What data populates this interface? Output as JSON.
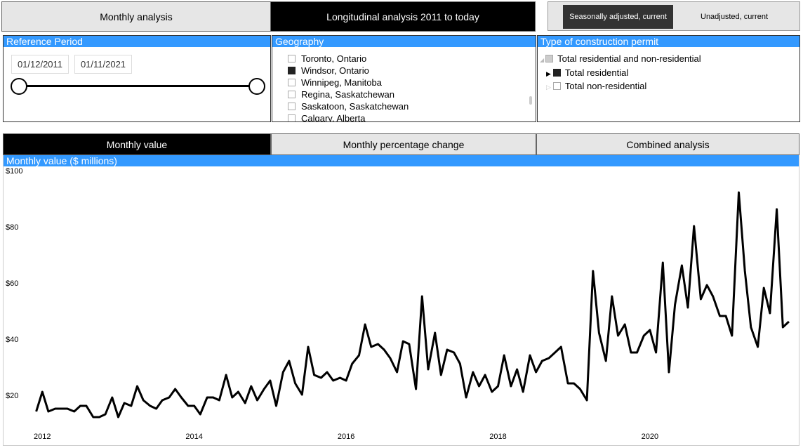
{
  "tabs": [
    "Monthly analysis",
    "Longitudinal analysis 2011 to today"
  ],
  "adjustment": [
    "Seasonally adjusted, current",
    "Unadjusted, current"
  ],
  "reference_period": {
    "title": "Reference Period",
    "start": "01/12/2011",
    "end": "01/11/2021"
  },
  "geography": {
    "title": "Geography",
    "items": [
      "Toronto, Ontario",
      "Windsor, Ontario",
      "Winnipeg, Manitoba",
      "Regina, Saskatchewan",
      "Saskatoon, Saskatchewan",
      "Calgary, Alberta"
    ]
  },
  "permit_type": {
    "title": "Type of construction permit",
    "items": [
      "Total residential and non-residential",
      "Total residential",
      "Total non-residential"
    ]
  },
  "view_tabs": [
    "Monthly value",
    "Monthly percentage change",
    "Combined analysis"
  ],
  "chart_data": {
    "type": "line",
    "title": "Monthly value ($ millions)",
    "color": "#000000",
    "x": [
      2011.92,
      2012.0,
      2012.08,
      2012.17,
      2012.25,
      2012.33,
      2012.42,
      2012.5,
      2012.58,
      2012.67,
      2012.75,
      2012.83,
      2012.92,
      2013.0,
      2013.08,
      2013.17,
      2013.25,
      2013.33,
      2013.42,
      2013.5,
      2013.58,
      2013.67,
      2013.75,
      2013.83,
      2013.92,
      2014.0,
      2014.08,
      2014.17,
      2014.25,
      2014.33,
      2014.42,
      2014.5,
      2014.58,
      2014.67,
      2014.75,
      2014.83,
      2014.92,
      2015.0,
      2015.08,
      2015.17,
      2015.25,
      2015.33,
      2015.42,
      2015.5,
      2015.58,
      2015.67,
      2015.75,
      2015.83,
      2015.92,
      2016.0,
      2016.08,
      2016.17,
      2016.25,
      2016.33,
      2016.42,
      2016.5,
      2016.58,
      2016.67,
      2016.75,
      2016.83,
      2016.92,
      2017.0,
      2017.08,
      2017.17,
      2017.25,
      2017.33,
      2017.42,
      2017.5,
      2017.58,
      2017.67,
      2017.75,
      2017.83,
      2017.92,
      2018.0,
      2018.08,
      2018.17,
      2018.25,
      2018.33,
      2018.42,
      2018.5,
      2018.58,
      2018.67,
      2018.75,
      2018.83,
      2018.92,
      2019.0,
      2019.08,
      2019.17,
      2019.25,
      2019.33,
      2019.42,
      2019.5,
      2019.58,
      2019.67,
      2019.75,
      2019.83,
      2019.92,
      2020.0,
      2020.08,
      2020.17,
      2020.25,
      2020.33,
      2020.42,
      2020.5,
      2020.58,
      2020.67,
      2020.75,
      2020.83,
      2020.92,
      2021.0,
      2021.08,
      2021.17,
      2021.25,
      2021.33,
      2021.42,
      2021.5,
      2021.58,
      2021.67,
      2021.75,
      2021.83
    ],
    "values": [
      16,
      23,
      16,
      17,
      17,
      17,
      16,
      18,
      18,
      14,
      14,
      15,
      21,
      14,
      19,
      18,
      25,
      20,
      18,
      17,
      20,
      21,
      24,
      21,
      18,
      18,
      15,
      21,
      21,
      20,
      29,
      21,
      23,
      19,
      25,
      20,
      24,
      27,
      18,
      30,
      34,
      26,
      22,
      39,
      29,
      28,
      30,
      27,
      28,
      27,
      33,
      36,
      47,
      39,
      40,
      38,
      35,
      30,
      41,
      40,
      24,
      57,
      31,
      44,
      29,
      38,
      37,
      33,
      21,
      30,
      25,
      29,
      23,
      25,
      36,
      25,
      31,
      23,
      36,
      30,
      34,
      35,
      37,
      39,
      26,
      26,
      24,
      20,
      66,
      44,
      34,
      57,
      43,
      47,
      37,
      37,
      43,
      45,
      37,
      69,
      30,
      54,
      68,
      53,
      82,
      56,
      61,
      57,
      50,
      50,
      43,
      94,
      66,
      46,
      39,
      60,
      51,
      88,
      46,
      48
    ],
    "xlim": [
      2011.48,
      2021.96
    ],
    "xticks": [
      2012,
      2014,
      2016,
      2018,
      2020
    ],
    "ylim": [
      5,
      102.5
    ],
    "yticks": [
      {
        "value": 20,
        "label": "$20"
      },
      {
        "value": 40,
        "label": "$40"
      },
      {
        "value": 60,
        "label": "$60"
      },
      {
        "value": 80,
        "label": "$80"
      },
      {
        "value": 100,
        "label": "$100"
      }
    ]
  }
}
